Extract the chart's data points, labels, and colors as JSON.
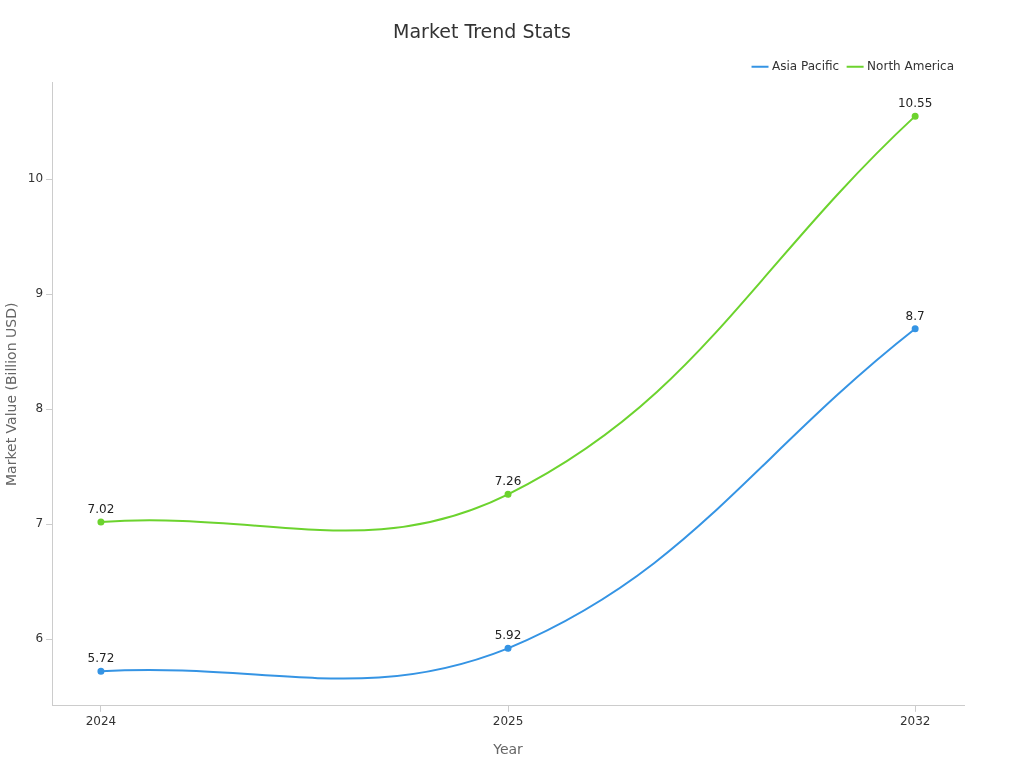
{
  "chart_data": {
    "type": "line",
    "title": "Market Trend Stats",
    "xlabel": "Year",
    "ylabel": "Market Value (Billion USD)",
    "categories": [
      "2024",
      "2025",
      "2032"
    ],
    "series": [
      {
        "name": "Asia Pacific",
        "color": "#3594e4",
        "values": [
          5.72,
          5.92,
          8.7
        ]
      },
      {
        "name": "North America",
        "color": "#6cd32e",
        "values": [
          7.02,
          7.26,
          10.55
        ]
      }
    ],
    "ylim": [
      5.42,
      10.84
    ],
    "yticks": [
      6,
      7,
      8,
      9,
      10
    ],
    "grid": false,
    "legend": "top right",
    "marker": "circle",
    "line_style": "solid",
    "data_labels": true
  }
}
